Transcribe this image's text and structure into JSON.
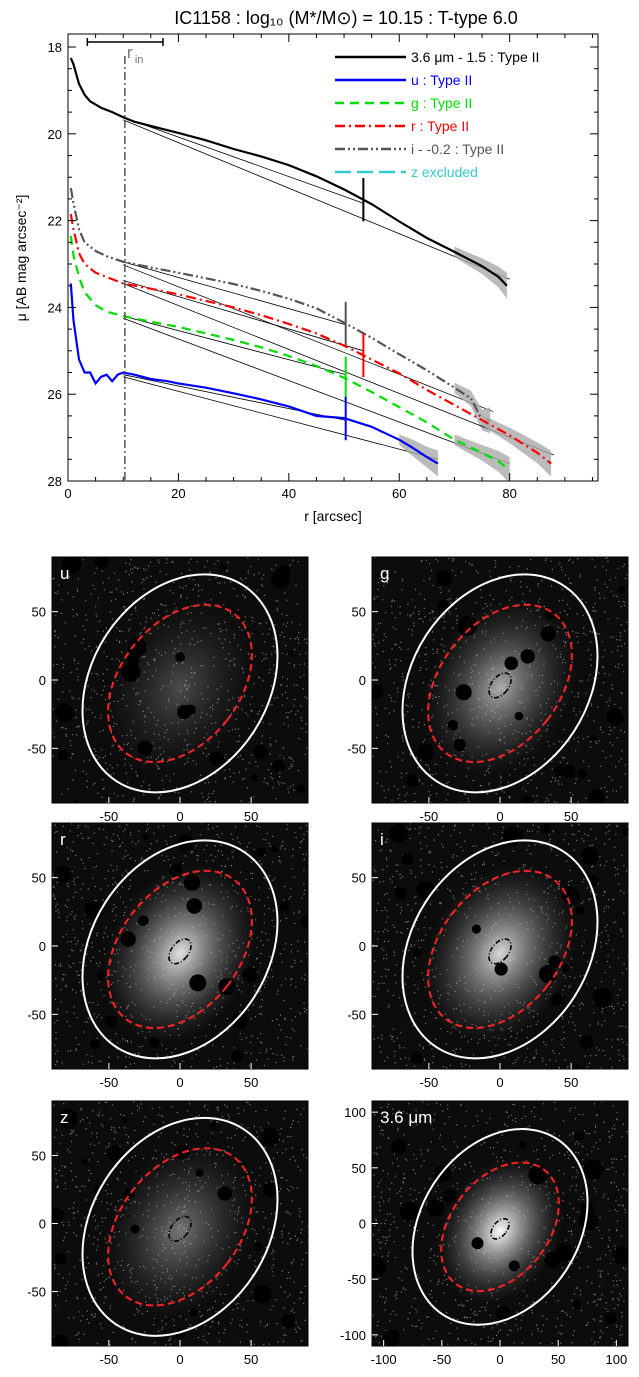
{
  "chart_data": [
    {
      "type": "line",
      "title": "IC1158 : log₁₀ (M*/M⊙) = 10.15 : T-type 6.0",
      "xlabel": "r [arcsec]",
      "ylabel": "μ [AB mag arcsec⁻²]",
      "xlim": [
        0,
        96
      ],
      "ylim": [
        28,
        17.7
      ],
      "xticks": [
        "0",
        "20",
        "40",
        "60",
        "80"
      ],
      "yticks": [
        "18",
        "20",
        "22",
        "24",
        "26",
        "28"
      ],
      "r_in_label": "r",
      "r_in_sub": "in",
      "r_in_value": 10.3,
      "r_in_errorbar": [
        3.5,
        17.2
      ],
      "legend_position": "top-right",
      "legend": [
        {
          "label": "3.6 μm - 1.5 : Type II",
          "color": "#000000",
          "dash": "solid"
        },
        {
          "label": "u : Type II",
          "color": "#0000ff",
          "dash": "solid"
        },
        {
          "label": "g : Type II",
          "color": "#00dd00",
          "dash": "dash"
        },
        {
          "label": "r : Type II",
          "color": "#ff0000",
          "dash": "dashdot"
        },
        {
          "label": "i - -0.2 : Type II",
          "color": "#555555",
          "dash": "dashdotdot"
        },
        {
          "label": "z excluded",
          "color": "#33cccc",
          "dash": "longdash"
        }
      ],
      "series": [
        {
          "name": "3.6 μm - 1.5 : Type II",
          "color": "#000000",
          "x": [
            0.5,
            1,
            2,
            3,
            4,
            6,
            8,
            10,
            12,
            15,
            20,
            25,
            30,
            35,
            40,
            45,
            50,
            55,
            60,
            65,
            70,
            75,
            78,
            79.5
          ],
          "y": [
            18.25,
            18.4,
            18.85,
            19.1,
            19.25,
            19.4,
            19.5,
            19.62,
            19.72,
            19.82,
            19.98,
            20.15,
            20.35,
            20.52,
            20.72,
            20.98,
            21.28,
            21.62,
            22.02,
            22.4,
            22.72,
            23.05,
            23.3,
            23.5
          ],
          "break_x": 53.5,
          "fits": [
            [
              10,
              19.62,
              53.5,
              21.6
            ],
            [
              10,
              19.68,
              80,
              23.35
            ]
          ]
        },
        {
          "name": "i - -0.2 : Type II",
          "color": "#555555",
          "x": [
            0.5,
            1,
            2,
            3,
            5,
            7,
            10,
            15,
            20,
            25,
            30,
            35,
            40,
            45,
            50,
            55,
            60,
            65,
            70,
            73,
            75,
            76.5
          ],
          "y": [
            21.25,
            21.6,
            22.2,
            22.5,
            22.7,
            22.82,
            22.95,
            23.08,
            23.2,
            23.33,
            23.46,
            23.62,
            23.8,
            24.02,
            24.35,
            24.7,
            25.08,
            25.45,
            25.85,
            26.1,
            26.6,
            26.6
          ],
          "break_x": 50.3,
          "fits": [
            [
              10,
              22.95,
              50.3,
              24.4
            ],
            [
              10,
              23.02,
              77,
              26.4
            ]
          ]
        },
        {
          "name": "r : Type II",
          "color": "#ff0000",
          "x": [
            0.5,
            1,
            2,
            3,
            5,
            7,
            10,
            15,
            20,
            25,
            30,
            35,
            40,
            45,
            50,
            55,
            60,
            65,
            70,
            75,
            80,
            85,
            87.5
          ],
          "y": [
            21.85,
            22.2,
            22.75,
            23.0,
            23.2,
            23.3,
            23.45,
            23.57,
            23.7,
            23.85,
            24.0,
            24.18,
            24.38,
            24.6,
            24.88,
            25.2,
            25.52,
            25.9,
            26.25,
            26.6,
            26.95,
            27.35,
            27.6
          ],
          "break_x": 53.5,
          "fits": [
            [
              10,
              23.38,
              53.5,
              25.0
            ],
            [
              10,
              23.45,
              88,
              27.4
            ]
          ]
        },
        {
          "name": "g : Type II",
          "color": "#00dd00",
          "x": [
            0.5,
            1,
            2,
            3,
            5,
            7,
            10,
            15,
            20,
            25,
            30,
            35,
            40,
            45,
            50,
            55,
            60,
            65,
            70,
            75,
            78,
            80
          ],
          "y": [
            22.35,
            22.8,
            23.3,
            23.65,
            23.95,
            24.1,
            24.2,
            24.33,
            24.45,
            24.6,
            24.75,
            24.92,
            25.12,
            25.35,
            25.62,
            25.95,
            26.3,
            26.65,
            27.05,
            27.35,
            27.55,
            27.75
          ],
          "break_x": 50.3,
          "fits": [
            [
              10,
              24.2,
              50.3,
              25.55
            ],
            [
              10,
              24.25,
              80,
              27.6
            ]
          ]
        },
        {
          "name": "u : Type II",
          "color": "#0000ff",
          "x": [
            0.5,
            1,
            2,
            3,
            4,
            5,
            6,
            7,
            8,
            9,
            10,
            12,
            15,
            18,
            20,
            25,
            30,
            35,
            40,
            45,
            50,
            55,
            60,
            62,
            65,
            67
          ],
          "y": [
            23.45,
            24.3,
            25.2,
            25.5,
            25.5,
            25.75,
            25.6,
            25.55,
            25.7,
            25.55,
            25.5,
            25.55,
            25.65,
            25.7,
            25.75,
            25.85,
            25.98,
            26.12,
            26.28,
            26.5,
            26.55,
            26.75,
            27.05,
            27.2,
            27.45,
            27.6
          ],
          "break_x": 50.3,
          "fits": [
            [
              10,
              25.55,
              50.3,
              26.6
            ],
            [
              10,
              25.6,
              67,
              27.5
            ]
          ]
        }
      ]
    },
    {
      "type": "image",
      "panels": [
        {
          "label": "u",
          "xticks": [
            "-50",
            "0",
            "50"
          ],
          "yticks": [
            "50",
            "0",
            "-50"
          ],
          "range": [
            -90,
            90
          ],
          "brightness": 0.12,
          "inner_ellipse": false
        },
        {
          "label": "g",
          "xticks": [
            "-50",
            "0",
            "50"
          ],
          "yticks": [
            "50",
            "0",
            "-50"
          ],
          "range": [
            -90,
            90
          ],
          "brightness": 0.3,
          "inner_ellipse": true
        },
        {
          "label": "r",
          "xticks": [
            "-50",
            "0",
            "50"
          ],
          "yticks": [
            "50",
            "0",
            "-50"
          ],
          "range": [
            -90,
            90
          ],
          "brightness": 0.4,
          "inner_ellipse": true
        },
        {
          "label": "i",
          "xticks": [
            "-50",
            "0",
            "50"
          ],
          "yticks": [
            "50",
            "0",
            "-50"
          ],
          "range": [
            -90,
            90
          ],
          "brightness": 0.38,
          "inner_ellipse": true
        },
        {
          "label": "z",
          "xticks": [
            "-50",
            "0",
            "50"
          ],
          "yticks": [
            "50",
            "0",
            "-50"
          ],
          "range": [
            -90,
            90
          ],
          "brightness": 0.2,
          "inner_ellipse": true
        },
        {
          "label": "3.6 μm",
          "xticks": [
            "-100",
            "-50",
            "0",
            "50",
            "100"
          ],
          "yticks": [
            "100",
            "50",
            "0",
            "-50",
            "-100"
          ],
          "range": [
            -110,
            110
          ],
          "brightness": 0.45,
          "inner_ellipse": true
        }
      ]
    }
  ]
}
